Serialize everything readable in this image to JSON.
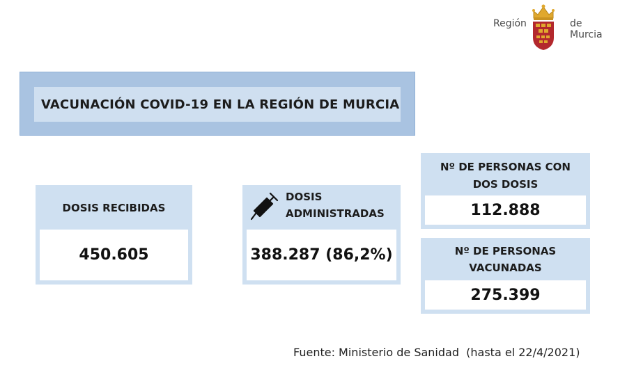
{
  "logo": {
    "left_text": "Región",
    "right_text": "de Murcia"
  },
  "title": "VACUNACIÓN COVID-19 EN LA REGIÓN DE MURCIA",
  "cards": {
    "received": {
      "label": "DOSIS RECIBIDAS",
      "value": "450.605"
    },
    "administered": {
      "label_line1": "DOSIS",
      "label_line2": "ADMINISTRADAS",
      "value": "388.287 (86,2%)",
      "icon": "syringe-icon"
    },
    "two_doses": {
      "label_line1": "Nº DE PERSONAS CON",
      "label_line2": "DOS DOSIS",
      "value": "112.888"
    },
    "vaccinated": {
      "label_line1": "Nº DE PERSONAS",
      "label_line2": "VACUNADAS",
      "value": "275.399"
    }
  },
  "footer": "Fuente: Ministerio de Sanidad  (hasta el 22/4/2021)",
  "colors": {
    "banner_outer": "#a9c3e1",
    "banner_inner": "#cfdff0",
    "card_bg": "#cfe0f1",
    "crest_red": "#b3282d",
    "crown_gold": "#e0a82e"
  }
}
